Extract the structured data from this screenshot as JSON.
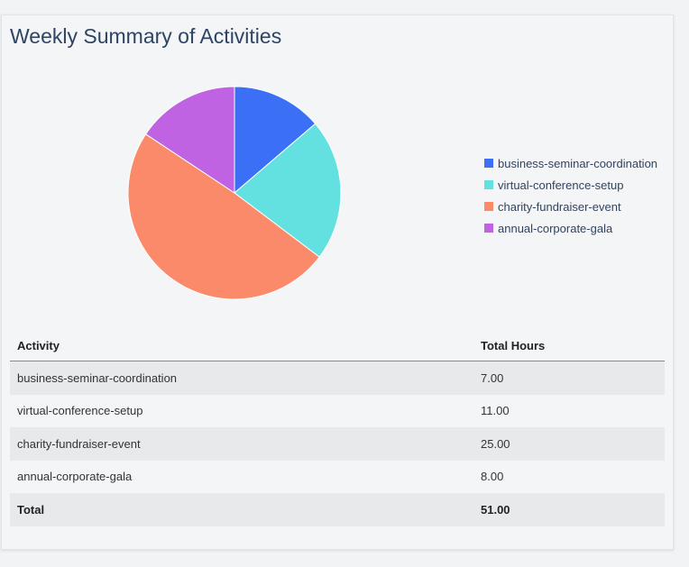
{
  "title": "Weekly Summary of Activities",
  "chart_data": {
    "type": "pie",
    "categories": [
      "business-seminar-coordination",
      "virtual-conference-setup",
      "charity-fundraiser-event",
      "annual-corporate-gala"
    ],
    "values": [
      7,
      11,
      25,
      8
    ],
    "colors": [
      "#3b6ff5",
      "#63e0e0",
      "#fb8a6b",
      "#c063e2"
    ],
    "legend_position": "right"
  },
  "table": {
    "headers": [
      "Activity",
      "Total Hours"
    ],
    "rows": [
      [
        "business-seminar-coordination",
        "7.00"
      ],
      [
        "virtual-conference-setup",
        "11.00"
      ],
      [
        "charity-fundraiser-event",
        "25.00"
      ],
      [
        "annual-corporate-gala",
        "8.00"
      ]
    ],
    "total": [
      "Total",
      "51.00"
    ]
  }
}
